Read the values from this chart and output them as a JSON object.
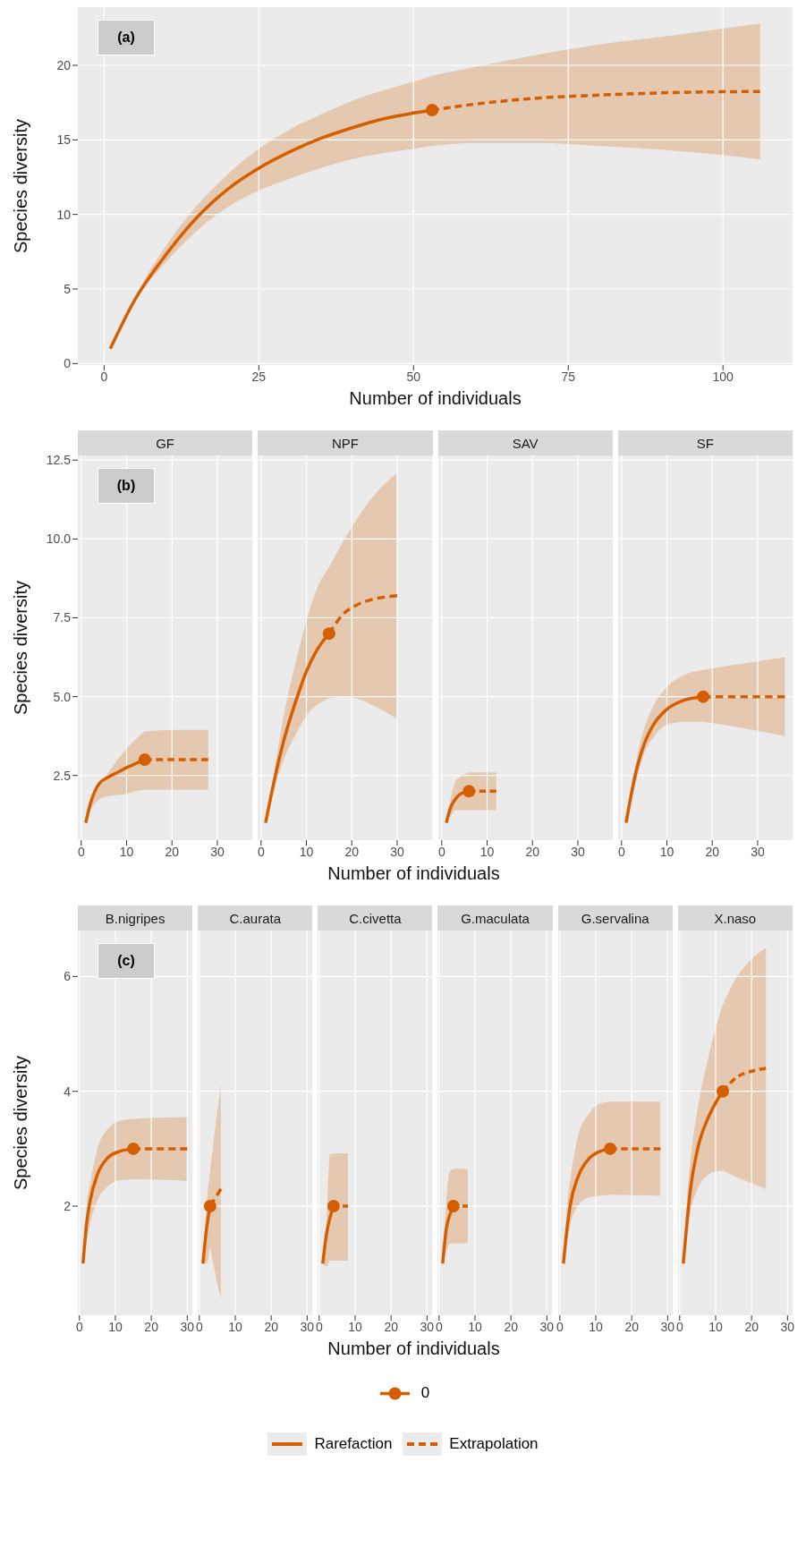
{
  "chart_data": [
    {
      "type": "line",
      "xlabel": "Number of individuals",
      "ylabel": "Species diversity",
      "annotations": [
        "(a)"
      ],
      "xlim": [
        -4.25,
        111.25
      ],
      "ylim": [
        -0.1,
        23.9
      ],
      "xticks": [
        0,
        25,
        50,
        75,
        100
      ],
      "yticks": [
        0,
        5,
        10,
        15,
        20
      ],
      "grid": true,
      "series": [
        {
          "type": "line",
          "line_style": "solid",
          "color": "#d55e00",
          "x": [
            1,
            5,
            10,
            15,
            20,
            25,
            30,
            35,
            40,
            45,
            50,
            53
          ],
          "values": [
            1,
            4.3,
            7.3,
            9.8,
            11.7,
            13.1,
            14.2,
            15.1,
            15.8,
            16.4,
            16.8,
            17
          ],
          "lower": [
            1,
            4.2,
            6.8,
            8.9,
            10.5,
            11.6,
            12.4,
            13.1,
            13.7,
            14.1,
            14.4,
            14.6
          ],
          "upper": [
            1,
            4.5,
            7.9,
            10.6,
            12.7,
            14.4,
            15.7,
            16.7,
            17.6,
            18.3,
            18.9,
            19.3
          ]
        },
        {
          "type": "line",
          "line_style": "dashed",
          "color": "#d55e00",
          "x": [
            53,
            60,
            70,
            80,
            90,
            106
          ],
          "values": [
            17,
            17.4,
            17.8,
            18,
            18.15,
            18.25
          ],
          "lower": [
            14.6,
            14.8,
            14.8,
            14.6,
            14.35,
            13.7
          ],
          "upper": [
            19.3,
            19.9,
            20.7,
            21.4,
            21.9,
            22.8
          ]
        },
        {
          "type": "scatter",
          "marker": "circle",
          "color": "#d55e00",
          "x": [
            53
          ],
          "values": [
            17
          ]
        }
      ]
    },
    {
      "type": "line",
      "title": "GF",
      "ylabel": "Species diversity",
      "annotations": [
        "(b)"
      ],
      "xlim": [
        -0.75,
        37.75
      ],
      "ylim": [
        0.45,
        12.65
      ],
      "xticks": [
        0,
        10,
        20,
        30
      ],
      "yticks": [
        2.5,
        {
          "value": 5,
          "label": "5.0"
        },
        7.5,
        {
          "value": 10,
          "label": "10.0"
        },
        12.5
      ],
      "grid": true,
      "series": [
        {
          "type": "line",
          "line_style": "solid",
          "color": "#d55e00",
          "x": [
            1,
            2,
            3,
            4,
            6,
            8,
            10,
            12,
            14
          ],
          "values": [
            1,
            1.6,
            2,
            2.25,
            2.45,
            2.6,
            2.75,
            2.88,
            3
          ],
          "lower": [
            1,
            1.4,
            1.6,
            1.75,
            1.85,
            1.88,
            1.92,
            2,
            2.05
          ],
          "upper": [
            1,
            1.6,
            1.9,
            2.2,
            2.6,
            3,
            3.35,
            3.65,
            3.9
          ]
        },
        {
          "type": "line",
          "line_style": "dashed",
          "color": "#d55e00",
          "x": [
            14,
            21,
            28
          ],
          "values": [
            3,
            3,
            3
          ],
          "lower": [
            2.05,
            2.05,
            2.05
          ],
          "upper": [
            3.9,
            3.95,
            3.95
          ]
        },
        {
          "type": "scatter",
          "marker": "circle",
          "color": "#d55e00",
          "x": [
            14
          ],
          "values": [
            3
          ]
        }
      ]
    },
    {
      "type": "line",
      "title": "NPF",
      "xlabel": "Number of individuals",
      "tick_labels": "x",
      "xlim": [
        -0.75,
        37.75
      ],
      "ylim": [
        0.45,
        12.65
      ],
      "xticks": [
        0,
        10,
        20,
        30
      ],
      "yticks": [
        2.5,
        5,
        7.5,
        10,
        12.5
      ],
      "grid": true,
      "series": [
        {
          "type": "line",
          "line_style": "solid",
          "color": "#d55e00",
          "x": [
            1,
            3,
            5,
            8,
            10,
            12,
            15
          ],
          "values": [
            1,
            2.4,
            3.6,
            5,
            5.8,
            6.4,
            7
          ],
          "lower": [
            1,
            2.1,
            3,
            3.9,
            4.4,
            4.7,
            4.95
          ],
          "upper": [
            1,
            2.7,
            4.4,
            6.3,
            7.4,
            8.3,
            9.1
          ]
        },
        {
          "type": "line",
          "line_style": "dashed",
          "color": "#d55e00",
          "x": [
            15,
            18,
            21,
            25,
            30
          ],
          "values": [
            7,
            7.6,
            7.9,
            8.1,
            8.2
          ],
          "lower": [
            4.95,
            5,
            4.95,
            4.7,
            4.3
          ],
          "upper": [
            9.1,
            9.9,
            10.6,
            11.4,
            12.1
          ]
        },
        {
          "type": "scatter",
          "marker": "circle",
          "color": "#d55e00",
          "x": [
            15
          ],
          "values": [
            7
          ]
        }
      ]
    },
    {
      "type": "line",
      "title": "SAV",
      "tick_labels": "x",
      "xlim": [
        -0.75,
        37.75
      ],
      "ylim": [
        0.45,
        12.65
      ],
      "xticks": [
        0,
        10,
        20,
        30
      ],
      "yticks": [
        2.5,
        5,
        7.5,
        10,
        12.5
      ],
      "grid": true,
      "series": [
        {
          "type": "line",
          "line_style": "solid",
          "color": "#d55e00",
          "x": [
            1,
            2,
            3,
            4,
            6
          ],
          "values": [
            1,
            1.5,
            1.75,
            1.9,
            2
          ],
          "lower": [
            1,
            1.2,
            1.4,
            1.4,
            1.4
          ],
          "upper": [
            1,
            1.8,
            2.3,
            2.45,
            2.6
          ]
        },
        {
          "type": "line",
          "line_style": "dashed",
          "color": "#d55e00",
          "x": [
            6,
            9,
            12
          ],
          "values": [
            2,
            2,
            2
          ],
          "lower": [
            1.4,
            1.4,
            1.4
          ],
          "upper": [
            2.6,
            2.6,
            2.6
          ]
        },
        {
          "type": "scatter",
          "marker": "circle",
          "color": "#d55e00",
          "x": [
            6
          ],
          "values": [
            2
          ]
        }
      ]
    },
    {
      "type": "line",
      "title": "SF",
      "tick_labels": "x",
      "xlim": [
        -0.75,
        37.75
      ],
      "ylim": [
        0.45,
        12.65
      ],
      "xticks": [
        0,
        10,
        20,
        30
      ],
      "yticks": [
        2.5,
        5,
        7.5,
        10,
        12.5
      ],
      "grid": true,
      "series": [
        {
          "type": "line",
          "line_style": "solid",
          "color": "#d55e00",
          "x": [
            1,
            3,
            5,
            7,
            10,
            14,
            18
          ],
          "values": [
            1,
            2.5,
            3.5,
            4.1,
            4.6,
            4.9,
            5
          ],
          "lower": [
            1,
            2.2,
            3.2,
            3.7,
            4.1,
            4.2,
            4.2
          ],
          "upper": [
            1,
            2.8,
            4,
            4.7,
            5.3,
            5.7,
            5.85
          ]
        },
        {
          "type": "line",
          "line_style": "dashed",
          "color": "#d55e00",
          "x": [
            18,
            27,
            36
          ],
          "values": [
            5,
            5,
            5
          ],
          "lower": [
            4.2,
            4,
            3.75
          ],
          "upper": [
            5.85,
            6.05,
            6.25
          ]
        },
        {
          "type": "scatter",
          "marker": "circle",
          "color": "#d55e00",
          "x": [
            18
          ],
          "values": [
            5
          ]
        }
      ]
    },
    {
      "type": "line",
      "title": "B.nigripes",
      "ylabel": "Species diversity",
      "annotations": [
        "(c)"
      ],
      "xlim": [
        -0.45,
        31.45
      ],
      "ylim": [
        0.1,
        6.8
      ],
      "xticks": [
        0,
        10,
        20,
        30
      ],
      "yticks": [
        2,
        4,
        6
      ],
      "grid": true,
      "series": [
        {
          "type": "line",
          "line_style": "solid",
          "color": "#d55e00",
          "x": [
            1,
            2,
            3,
            5,
            8,
            11,
            15
          ],
          "values": [
            1,
            1.7,
            2.1,
            2.55,
            2.85,
            2.95,
            3
          ],
          "lower": [
            1,
            1.4,
            1.7,
            2.1,
            2.35,
            2.45,
            2.47
          ],
          "upper": [
            1,
            2,
            2.4,
            3,
            3.35,
            3.48,
            3.52
          ]
        },
        {
          "type": "line",
          "line_style": "dashed",
          "color": "#d55e00",
          "x": [
            15,
            22,
            30
          ],
          "values": [
            3,
            3,
            3
          ],
          "lower": [
            2.47,
            2.46,
            2.44
          ],
          "upper": [
            3.52,
            3.54,
            3.55
          ]
        },
        {
          "type": "scatter",
          "marker": "circle",
          "color": "#d55e00",
          "x": [
            15
          ],
          "values": [
            3
          ]
        }
      ]
    },
    {
      "type": "line",
      "title": "C.aurata",
      "tick_labels": "x",
      "xlim": [
        -0.45,
        31.45
      ],
      "ylim": [
        0.1,
        6.8
      ],
      "xticks": [
        0,
        10,
        20,
        30
      ],
      "yticks": [
        2,
        4,
        6
      ],
      "grid": true,
      "series": [
        {
          "type": "line",
          "line_style": "solid",
          "color": "#d55e00",
          "x": [
            1,
            2,
            3
          ],
          "values": [
            1,
            1.6,
            2
          ],
          "lower": [
            1,
            1,
            1.3
          ],
          "upper": [
            1,
            2,
            2.6
          ]
        },
        {
          "type": "line",
          "line_style": "dashed",
          "color": "#d55e00",
          "x": [
            3,
            4.5,
            6
          ],
          "values": [
            2,
            2.15,
            2.3
          ],
          "lower": [
            1.3,
            0.8,
            0.4
          ],
          "upper": [
            2.6,
            3.4,
            4.1
          ]
        },
        {
          "type": "scatter",
          "marker": "circle",
          "color": "#d55e00",
          "x": [
            3
          ],
          "values": [
            2
          ]
        }
      ]
    },
    {
      "type": "line",
      "title": "C.civetta",
      "xlabel": "Number of individuals",
      "tick_labels": "x",
      "xlim": [
        -0.45,
        31.45
      ],
      "ylim": [
        0.1,
        6.8
      ],
      "xticks": [
        0,
        10,
        20,
        30
      ],
      "yticks": [
        2,
        4,
        6
      ],
      "grid": true,
      "series": [
        {
          "type": "line",
          "line_style": "solid",
          "color": "#d55e00",
          "x": [
            1,
            2,
            3,
            4
          ],
          "values": [
            1,
            1.5,
            1.8,
            2
          ],
          "lower": [
            1,
            0.95,
            1.05,
            1.05
          ],
          "upper": [
            1,
            1.6,
            2.9,
            2.92
          ]
        },
        {
          "type": "line",
          "line_style": "dashed",
          "color": "#d55e00",
          "x": [
            4,
            6,
            8
          ],
          "values": [
            2,
            2,
            2
          ],
          "lower": [
            1.05,
            1.05,
            1.05
          ],
          "upper": [
            2.92,
            2.92,
            2.92
          ]
        },
        {
          "type": "scatter",
          "marker": "circle",
          "color": "#d55e00",
          "x": [
            4
          ],
          "values": [
            2
          ]
        }
      ]
    },
    {
      "type": "line",
      "title": "G.maculata",
      "tick_labels": "x",
      "xlim": [
        -0.45,
        31.45
      ],
      "ylim": [
        0.1,
        6.8
      ],
      "xticks": [
        0,
        10,
        20,
        30
      ],
      "yticks": [
        2,
        4,
        6
      ],
      "grid": true,
      "series": [
        {
          "type": "line",
          "line_style": "solid",
          "color": "#d55e00",
          "x": [
            1,
            2,
            3,
            4
          ],
          "values": [
            1,
            1.6,
            1.85,
            2
          ],
          "lower": [
            1,
            1.2,
            1.35,
            1.35
          ],
          "upper": [
            1,
            2.1,
            2.6,
            2.65
          ]
        },
        {
          "type": "line",
          "line_style": "dashed",
          "color": "#d55e00",
          "x": [
            4,
            6,
            8
          ],
          "values": [
            2,
            2,
            2
          ],
          "lower": [
            1.35,
            1.35,
            1.35
          ],
          "upper": [
            2.65,
            2.65,
            2.65
          ]
        },
        {
          "type": "scatter",
          "marker": "circle",
          "color": "#d55e00",
          "x": [
            4
          ],
          "values": [
            2
          ]
        }
      ]
    },
    {
      "type": "line",
      "title": "G.servalina",
      "tick_labels": "x",
      "xlim": [
        -0.45,
        31.45
      ],
      "ylim": [
        0.1,
        6.8
      ],
      "xticks": [
        0,
        10,
        20,
        30
      ],
      "yticks": [
        2,
        4,
        6
      ],
      "grid": true,
      "series": [
        {
          "type": "line",
          "line_style": "solid",
          "color": "#d55e00",
          "x": [
            1,
            2,
            3,
            5,
            8,
            11,
            14
          ],
          "values": [
            1,
            1.6,
            2.05,
            2.5,
            2.82,
            2.95,
            3
          ],
          "lower": [
            1,
            1.4,
            1.7,
            2,
            2.15,
            2.18,
            2.2
          ],
          "upper": [
            1,
            2,
            2.5,
            3.2,
            3.6,
            3.78,
            3.82
          ]
        },
        {
          "type": "line",
          "line_style": "dashed",
          "color": "#d55e00",
          "x": [
            14,
            21,
            28
          ],
          "values": [
            3,
            3,
            3
          ],
          "lower": [
            2.2,
            2.19,
            2.18
          ],
          "upper": [
            3.82,
            3.82,
            3.82
          ]
        },
        {
          "type": "scatter",
          "marker": "circle",
          "color": "#d55e00",
          "x": [
            14
          ],
          "values": [
            3
          ]
        }
      ]
    },
    {
      "type": "line",
      "title": "X.naso",
      "tick_labels": "x",
      "legend": "bottom",
      "xlim": [
        -0.45,
        31.45
      ],
      "ylim": [
        0.1,
        6.8
      ],
      "xticks": [
        0,
        10,
        20,
        30
      ],
      "yticks": [
        2,
        4,
        6
      ],
      "grid": true,
      "series": [
        {
          "type": "line",
          "name": "Rarefaction",
          "line_style": "solid",
          "color": "#d55e00",
          "x": [
            1,
            2,
            3,
            5,
            8,
            10,
            12
          ],
          "values": [
            1,
            1.7,
            2.3,
            3,
            3.55,
            3.8,
            4
          ],
          "lower": [
            1,
            1.5,
            1.9,
            2.3,
            2.55,
            2.6,
            2.62
          ],
          "upper": [
            1,
            2.1,
            2.8,
            3.7,
            4.6,
            5.1,
            5.5
          ]
        },
        {
          "type": "line",
          "name": "Extrapolation",
          "line_style": "dashed",
          "color": "#d55e00",
          "x": [
            12,
            16,
            20,
            24
          ],
          "values": [
            4,
            4.25,
            4.35,
            4.4
          ],
          "lower": [
            2.62,
            2.5,
            2.4,
            2.3
          ],
          "upper": [
            5.5,
            6,
            6.3,
            6.5
          ]
        },
        {
          "type": "scatter",
          "name": "0",
          "marker": "circle",
          "color": "#d55e00",
          "x": [
            12
          ],
          "values": [
            4
          ]
        }
      ]
    }
  ]
}
